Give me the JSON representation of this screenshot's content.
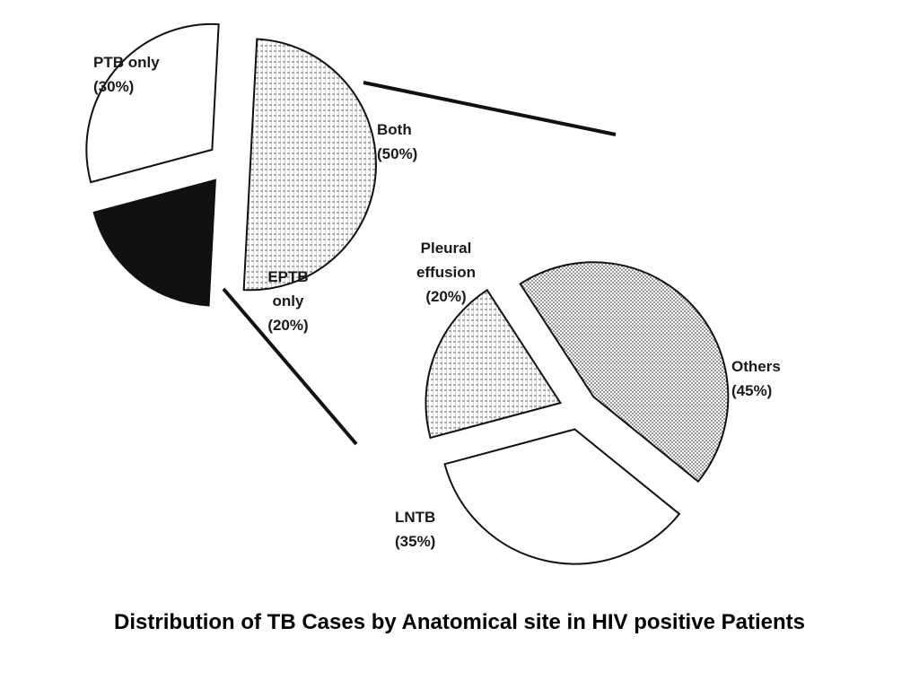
{
  "caption": "Distribution of TB Cases by Anatomical site in HIV positive Patients",
  "chart_data": [
    {
      "type": "pie",
      "exploded": true,
      "slices": [
        {
          "label_lines": [
            "PTB  only",
            "(30%)"
          ],
          "value": 30,
          "fill": "white"
        },
        {
          "label_lines": [
            "Both",
            "(50%)"
          ],
          "value": 50,
          "fill": "hatch"
        },
        {
          "label_lines": [
            "EPTB",
            "only",
            "(20%)"
          ],
          "value": 20,
          "fill": "black"
        }
      ]
    },
    {
      "type": "pie",
      "exploded": true,
      "slices": [
        {
          "label_lines": [
            "Pleural",
            "effusion",
            "(20%)"
          ],
          "value": 20,
          "fill": "hatch"
        },
        {
          "label_lines": [
            "Others",
            "(45%)"
          ],
          "value": 45,
          "fill": "dots"
        },
        {
          "label_lines": [
            "LNTB",
            "(35%)"
          ],
          "value": 35,
          "fill": "white"
        }
      ]
    }
  ]
}
